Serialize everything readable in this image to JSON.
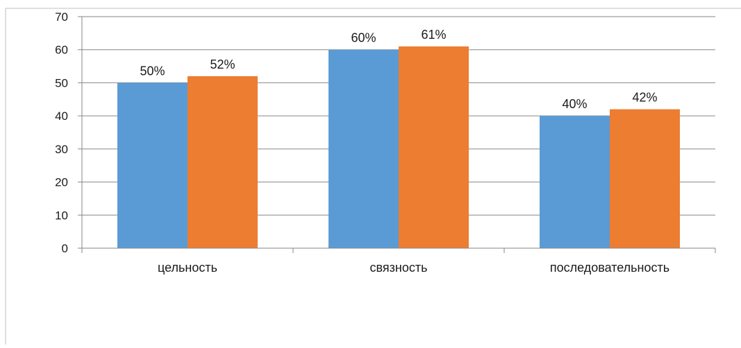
{
  "chart_data": {
    "type": "bar",
    "categories": [
      "цельность",
      "связность",
      "последовательность"
    ],
    "series": [
      {
        "values": [
          50,
          60,
          40
        ],
        "labels": [
          "50%",
          "60%",
          "40%"
        ],
        "color": "#5B9BD5"
      },
      {
        "values": [
          52,
          61,
          42
        ],
        "labels": [
          "52%",
          "61%",
          "42%"
        ],
        "color": "#ED7D31"
      }
    ],
    "ylim": [
      0,
      70
    ],
    "yticks": [
      0,
      10,
      20,
      30,
      40,
      50,
      60,
      70
    ],
    "grid": true,
    "legend": false
  }
}
